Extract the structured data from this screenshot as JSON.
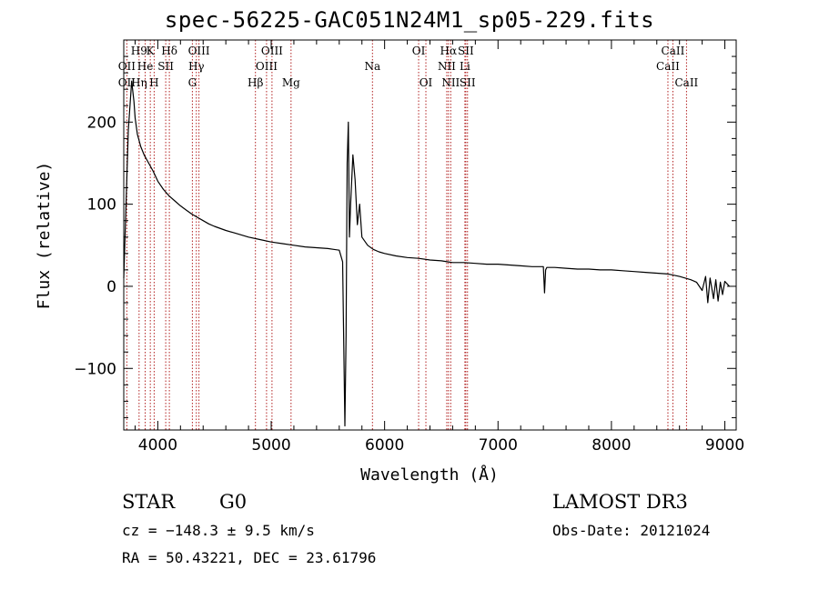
{
  "title": "spec-56225-GAC051N24M1_sp05-229.fits",
  "info": {
    "class_label": "STAR",
    "subclass": "G0",
    "survey": "LAMOST DR3",
    "cz": "cz = −148.3 ± 9.5 km/s",
    "obs_date": "Obs-Date: 20121024",
    "radec": "RA =  50.43221, DEC =  23.61796"
  },
  "colors": {
    "line_marker": "#b22222",
    "spectrum": "#000000"
  },
  "chart_data": {
    "type": "line",
    "title": "spec-56225-GAC051N24M1_sp05-229.fits",
    "xlabel": "Wavelength (Å)",
    "ylabel": "Flux (relative)",
    "xlim": [
      3700,
      9100
    ],
    "ylim": [
      -175,
      300
    ],
    "xticks": [
      4000,
      5000,
      6000,
      7000,
      8000,
      9000
    ],
    "yticks": [
      -100,
      0,
      100,
      200
    ],
    "xtick_labels": [
      "4000",
      "5000",
      "6000",
      "7000",
      "8000",
      "9000"
    ],
    "ytick_labels": [
      "−100",
      "0",
      "100",
      "200"
    ],
    "spectrum": {
      "x": [
        3700,
        3740,
        3770,
        3790,
        3800,
        3820,
        3850,
        3880,
        3920,
        3960,
        4000,
        4050,
        4100,
        4150,
        4200,
        4250,
        4300,
        4350,
        4400,
        4450,
        4500,
        4600,
        4700,
        4800,
        4900,
        5000,
        5100,
        5200,
        5300,
        5400,
        5500,
        5550,
        5600,
        5630,
        5650,
        5660,
        5670,
        5680,
        5690,
        5700,
        5720,
        5740,
        5760,
        5780,
        5800,
        5850,
        5900,
        5950,
        6000,
        6100,
        6200,
        6300,
        6400,
        6500,
        6550,
        6600,
        6700,
        6800,
        6900,
        7000,
        7100,
        7200,
        7300,
        7400,
        7410,
        7420,
        7430,
        7500,
        7600,
        7700,
        7800,
        7900,
        8000,
        8100,
        8200,
        8300,
        8400,
        8500,
        8600,
        8700,
        8750,
        8800,
        8830,
        8850,
        8870,
        8900,
        8920,
        8940,
        8960,
        8980,
        9000,
        9020,
        9040
      ],
      "y": [
        10,
        190,
        250,
        225,
        205,
        185,
        170,
        160,
        150,
        140,
        128,
        118,
        110,
        104,
        98,
        93,
        88,
        84,
        80,
        76,
        73,
        68,
        64,
        60,
        57,
        54,
        52,
        50,
        48,
        47,
        46,
        45,
        44,
        30,
        -170,
        -60,
        150,
        200,
        60,
        100,
        160,
        130,
        75,
        100,
        60,
        50,
        45,
        42,
        40,
        37,
        35,
        34,
        32,
        31,
        30,
        29,
        29,
        28,
        27,
        27,
        26,
        25,
        24,
        24,
        -8,
        20,
        23,
        23,
        22,
        21,
        21,
        20,
        20,
        19,
        18,
        17,
        16,
        15,
        12,
        8,
        5,
        -5,
        12,
        -20,
        10,
        -15,
        8,
        -18,
        5,
        -10,
        6,
        3,
        0
      ]
    },
    "lines": [
      {
        "name": "OII",
        "wave": 3727,
        "row": 1
      },
      {
        "name": "OII",
        "wave": 3727,
        "row": 2
      },
      {
        "name": "H9",
        "wave": 3835,
        "row": 0
      },
      {
        "name": "He",
        "wave": 3889,
        "row": 1
      },
      {
        "name": "Hη",
        "wave": 3835,
        "row": 2
      },
      {
        "name": "K",
        "wave": 3934,
        "row": 0
      },
      {
        "name": "H",
        "wave": 3968,
        "row": 2
      },
      {
        "name": "SII",
        "wave": 4070,
        "row": 1
      },
      {
        "name": "Hδ",
        "wave": 4102,
        "row": 0
      },
      {
        "name": "G",
        "wave": 4305,
        "row": 2
      },
      {
        "name": "Hγ",
        "wave": 4340,
        "row": 1
      },
      {
        "name": "OIII",
        "wave": 4363,
        "row": 0
      },
      {
        "name": "Hβ",
        "wave": 4861,
        "row": 2
      },
      {
        "name": "OIII",
        "wave": 4959,
        "row": 1
      },
      {
        "name": "OIII",
        "wave": 5007,
        "row": 0
      },
      {
        "name": "Mg",
        "wave": 5175,
        "row": 2
      },
      {
        "name": "Na",
        "wave": 5893,
        "row": 1
      },
      {
        "name": "OI",
        "wave": 6300,
        "row": 0
      },
      {
        "name": "OI",
        "wave": 6364,
        "row": 2
      },
      {
        "name": "NII",
        "wave": 6548,
        "row": 1
      },
      {
        "name": "Hα",
        "wave": 6563,
        "row": 0
      },
      {
        "name": "NII",
        "wave": 6583,
        "row": 2
      },
      {
        "name": "SII",
        "wave": 6716,
        "row": 0
      },
      {
        "name": "Li",
        "wave": 6708,
        "row": 1
      },
      {
        "name": "SII",
        "wave": 6731,
        "row": 2
      },
      {
        "name": "CaII",
        "wave": 8498,
        "row": 1
      },
      {
        "name": "CaII",
        "wave": 8542,
        "row": 0
      },
      {
        "name": "CaII",
        "wave": 8662,
        "row": 2
      }
    ]
  }
}
